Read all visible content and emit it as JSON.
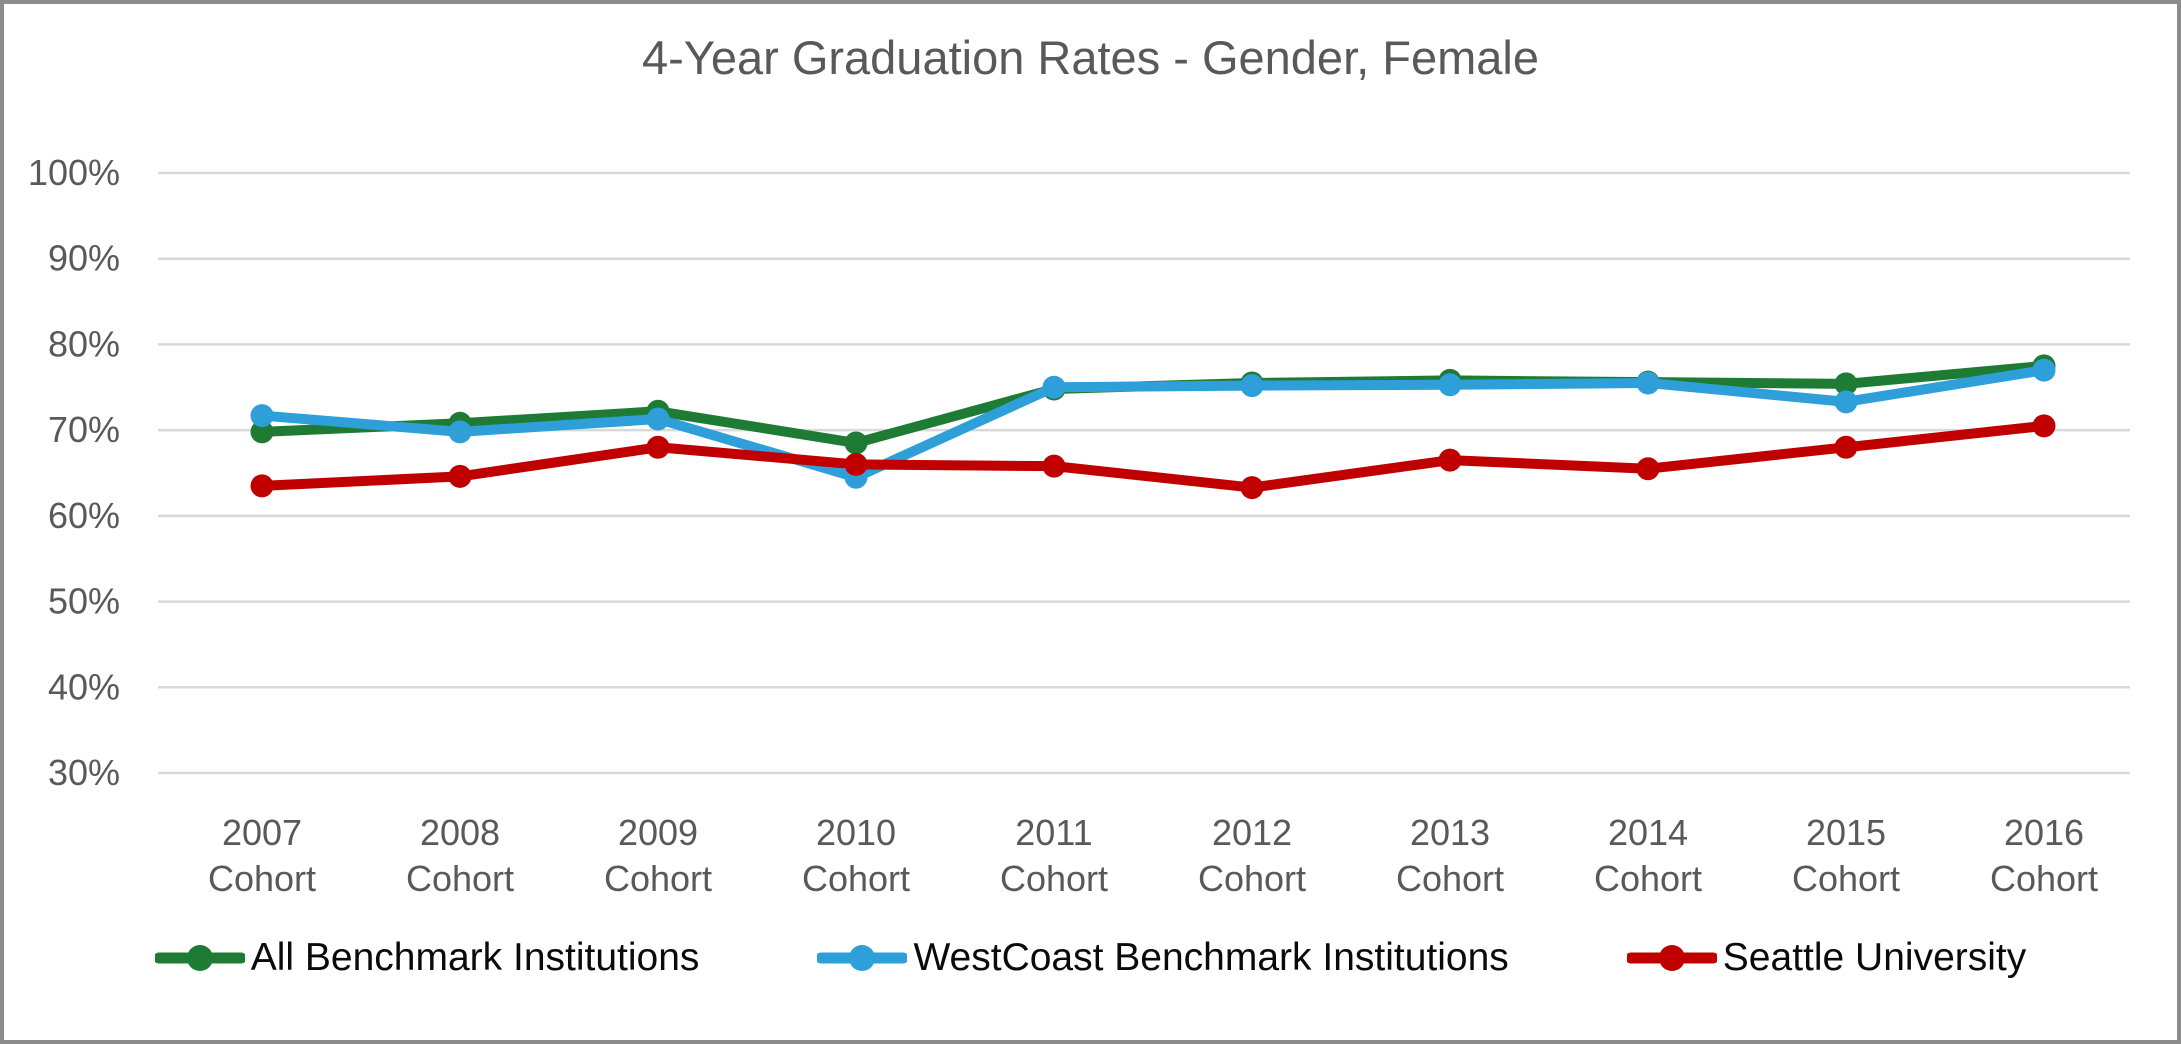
{
  "frame": {
    "border_color": "#8C8C8C",
    "background": "#FFFFFF"
  },
  "chart_data": {
    "type": "line",
    "title": "4-Year Graduation Rates - Gender, Female",
    "title_color": "#595959",
    "categories": [
      "2007",
      "2008",
      "2009",
      "2010",
      "2011",
      "2012",
      "2013",
      "2014",
      "2015",
      "2016"
    ],
    "x_tick_suffix": "Cohort",
    "xlabel": "",
    "ylabel": "",
    "y_axis": {
      "min": 30,
      "max": 100,
      "step": 10,
      "tick_labels": [
        "100%",
        "90%",
        "80%",
        "70%",
        "60%",
        "50%",
        "40%",
        "30%"
      ]
    },
    "grid": true,
    "gridline_color": "#D9D9D9",
    "axis_label_color": "#595959",
    "legend_position": "bottom",
    "series": [
      {
        "name": "All Benchmark Institutions",
        "color": "#1E7B34",
        "values": [
          69.8,
          70.8,
          72.2,
          68.5,
          74.8,
          75.5,
          75.8,
          75.6,
          75.4,
          77.5
        ]
      },
      {
        "name": "WestCoast Benchmark Institutions",
        "color": "#2E9FD9",
        "values": [
          71.7,
          69.8,
          71.3,
          64.5,
          75.0,
          75.2,
          75.3,
          75.5,
          73.3,
          77.0
        ]
      },
      {
        "name": "Seattle University",
        "color": "#C00000",
        "values": [
          63.5,
          64.6,
          68.0,
          66.0,
          65.8,
          63.3,
          66.5,
          65.5,
          68.0,
          70.5
        ]
      }
    ]
  }
}
